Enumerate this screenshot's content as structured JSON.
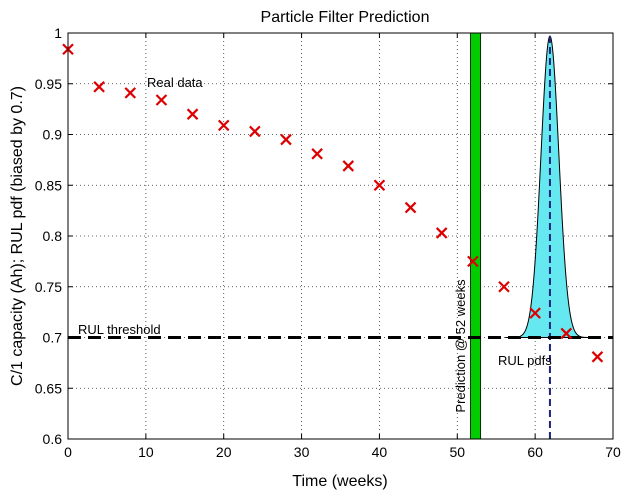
{
  "chart_data": {
    "type": "scatter",
    "title": "Particle Filter Prediction",
    "xlabel": "Time (weeks)",
    "ylabel": "C/1 capacity (Ah);   RUL pdf (biased by 0.7)",
    "xlim": [
      0,
      70
    ],
    "ylim": [
      0.6,
      1.0
    ],
    "xticks": [
      0,
      10,
      20,
      30,
      40,
      50,
      60,
      70
    ],
    "yticks": [
      0.6,
      0.65,
      0.7,
      0.75,
      0.8,
      0.85,
      0.9,
      0.95,
      1
    ],
    "ytick_labels": [
      "0.6",
      "0.65",
      "0.7",
      "0.75",
      "0.8",
      "0.85",
      "0.9",
      "0.95",
      "1"
    ],
    "grid": true,
    "series": [
      {
        "name": "Real data",
        "marker": "x",
        "color": "#dd0000",
        "x": [
          0,
          4,
          8,
          12,
          16,
          20,
          24,
          28,
          32,
          36,
          40,
          44,
          48,
          52,
          56,
          60,
          64,
          68
        ],
        "y": [
          0.984,
          0.947,
          0.941,
          0.934,
          0.92,
          0.909,
          0.903,
          0.895,
          0.881,
          0.869,
          0.85,
          0.828,
          0.803,
          0.775,
          0.75,
          0.724,
          0.704,
          0.681
        ]
      }
    ],
    "threshold": {
      "label": "RUL threshold",
      "y": 0.7,
      "color": "#000000"
    },
    "prediction_time": {
      "label": "Prediction @ 52 weeks",
      "x_from": 51.7,
      "x_to": 53.0,
      "color": "#00cc00"
    },
    "rul_pdf": {
      "label": "RUL pdfs",
      "peak_x": 61.9,
      "peak_y": 0.997,
      "sigma_weeks": 1.15,
      "base_y": 0.7,
      "fill_color": "#66e8f0",
      "mean_line_color": "#1a237e"
    },
    "annotations": {
      "real_data": "Real data",
      "threshold": "RUL threshold",
      "prediction": "Prediction @ 52 weeks",
      "rul": "RUL pdfs"
    }
  }
}
